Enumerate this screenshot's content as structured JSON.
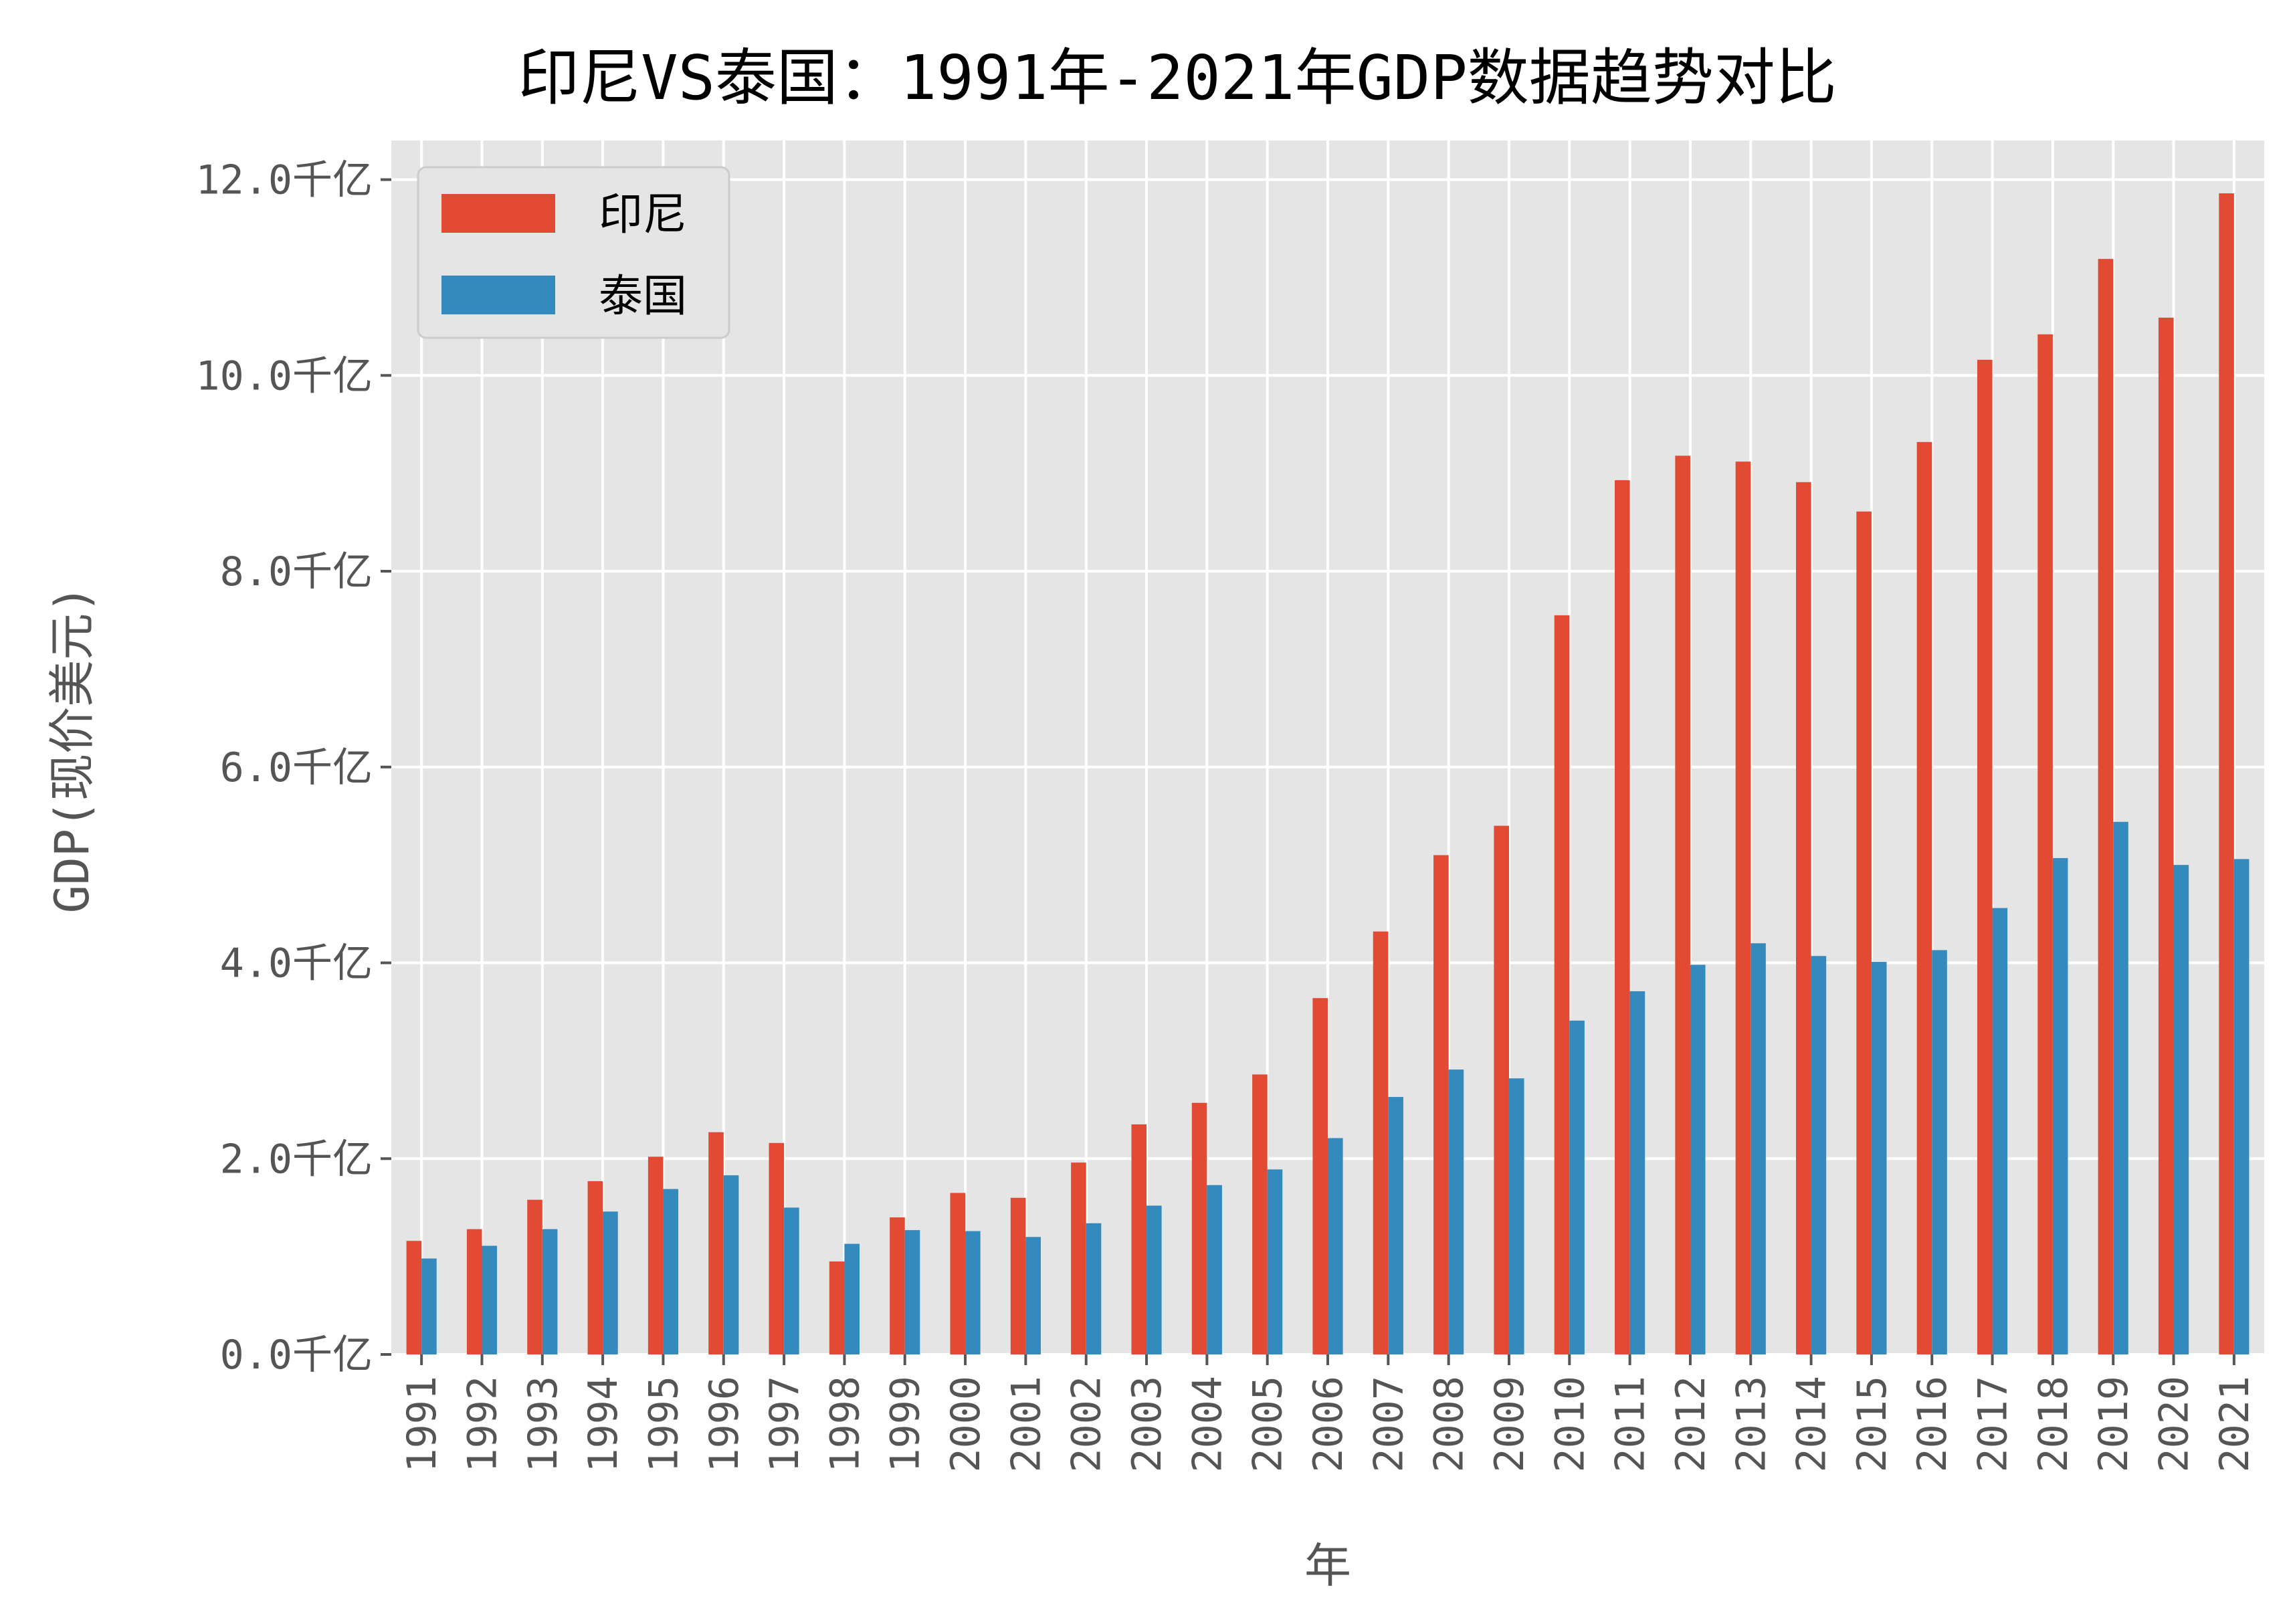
{
  "chart_data": {
    "type": "bar",
    "title": "印尼VS泰国：1991年-2021年GDP数据趋势对比",
    "xlabel": "年",
    "ylabel": "GDP(现价美元)",
    "ylim": [
      0,
      12.4
    ],
    "yticks": [
      0,
      2,
      4,
      6,
      8,
      10,
      12
    ],
    "ytick_labels": [
      "0.0千亿",
      "2.0千亿",
      "4.0千亿",
      "6.0千亿",
      "8.0千亿",
      "10.0千亿",
      "12.0千亿"
    ],
    "grid": true,
    "legend_position": "top-left",
    "categories": [
      "1991",
      "1992",
      "1993",
      "1994",
      "1995",
      "1996",
      "1997",
      "1998",
      "1999",
      "2000",
      "2001",
      "2002",
      "2003",
      "2004",
      "2005",
      "2006",
      "2007",
      "2008",
      "2009",
      "2010",
      "2011",
      "2012",
      "2013",
      "2014",
      "2015",
      "2016",
      "2017",
      "2018",
      "2019",
      "2020",
      "2021"
    ],
    "series": [
      {
        "name": "印尼",
        "color": "#e24a33",
        "values": [
          1.16,
          1.28,
          1.58,
          1.77,
          2.02,
          2.27,
          2.16,
          0.95,
          1.4,
          1.65,
          1.6,
          1.96,
          2.35,
          2.57,
          2.86,
          3.64,
          4.32,
          5.1,
          5.4,
          7.55,
          8.93,
          9.18,
          9.12,
          8.91,
          8.61,
          9.32,
          10.16,
          10.42,
          11.19,
          10.59,
          11.86
        ]
      },
      {
        "name": "泰国",
        "color": "#348abd",
        "values": [
          0.98,
          1.11,
          1.28,
          1.46,
          1.69,
          1.83,
          1.5,
          1.13,
          1.27,
          1.26,
          1.2,
          1.34,
          1.52,
          1.73,
          1.89,
          2.21,
          2.63,
          2.91,
          2.82,
          3.41,
          3.71,
          3.98,
          4.2,
          4.07,
          4.01,
          4.13,
          4.56,
          5.07,
          5.44,
          5.0,
          5.06
        ]
      }
    ]
  }
}
